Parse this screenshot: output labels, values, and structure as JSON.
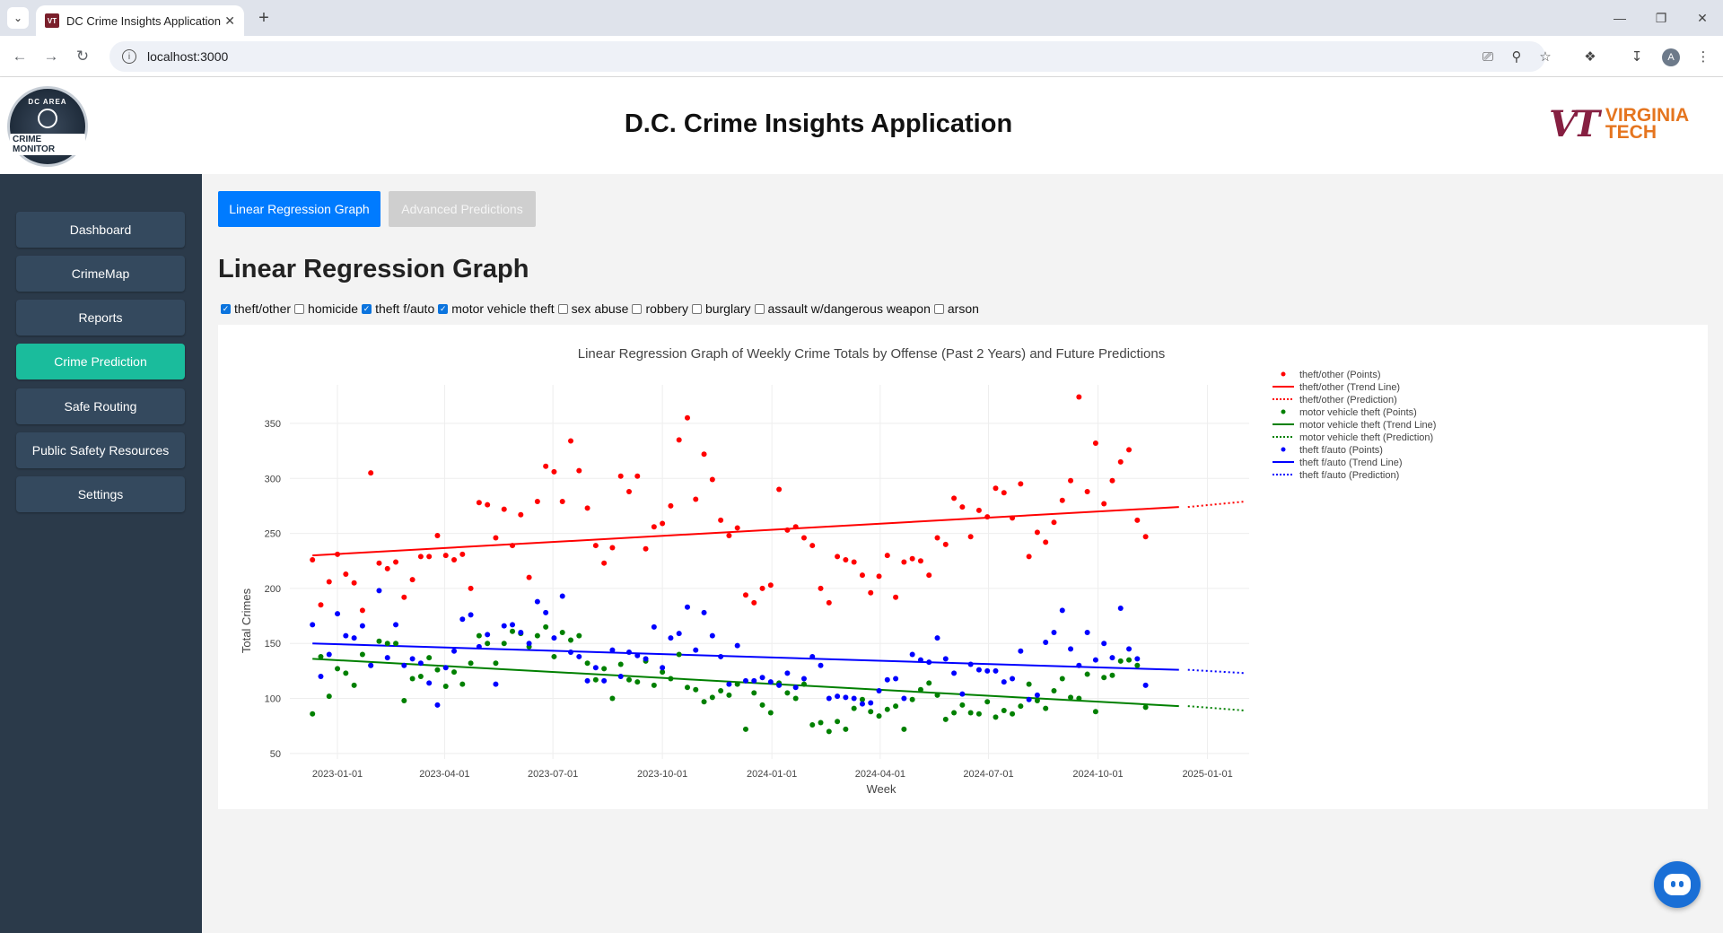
{
  "browser": {
    "tab_title": "DC Crime Insights Application",
    "url": "localhost:3000",
    "favicon_text": "VT",
    "profile_initial": "A"
  },
  "header": {
    "title": "D.C. Crime Insights Application",
    "logo_top": "DC AREA",
    "logo_bottom": "CRIME MONITOR",
    "vt_line1": "VIRGINIA",
    "vt_line2": "TECH"
  },
  "sidebar": {
    "items": [
      {
        "label": "Dashboard",
        "active": false
      },
      {
        "label": "CrimeMap",
        "active": false
      },
      {
        "label": "Reports",
        "active": false
      },
      {
        "label": "Crime Prediction",
        "active": true
      },
      {
        "label": "Safe Routing",
        "active": false
      },
      {
        "label": "Public Safety Resources",
        "active": false
      },
      {
        "label": "Settings",
        "active": false
      }
    ]
  },
  "main": {
    "tabs": [
      {
        "label": "Linear Regression Graph",
        "active": true
      },
      {
        "label": "Advanced Predictions",
        "active": false
      }
    ],
    "section_title": "Linear Regression Graph",
    "filters": [
      {
        "label": "theft/other",
        "checked": true
      },
      {
        "label": "homicide",
        "checked": false
      },
      {
        "label": "theft f/auto",
        "checked": true
      },
      {
        "label": "motor vehicle theft",
        "checked": true
      },
      {
        "label": "sex abuse",
        "checked": false
      },
      {
        "label": "robbery",
        "checked": false
      },
      {
        "label": "burglary",
        "checked": false
      },
      {
        "label": "assault w/dangerous weapon",
        "checked": false
      },
      {
        "label": "arson",
        "checked": false
      }
    ]
  },
  "chart_data": {
    "type": "scatter",
    "title": "Linear Regression Graph of Weekly Crime Totals by Offense (Past 2 Years) and Future Predictions",
    "xlabel": "Week",
    "ylabel": "Total Crimes",
    "x_ticks": [
      "2023-01-01",
      "2023-04-01",
      "2023-07-01",
      "2023-10-01",
      "2024-01-01",
      "2024-04-01",
      "2024-07-01",
      "2024-10-01",
      "2025-01-01"
    ],
    "y_ticks": [
      50,
      100,
      150,
      200,
      250,
      300,
      350
    ],
    "xlim": [
      "2022-11-22",
      "2025-02-05"
    ],
    "ylim": [
      45,
      385
    ],
    "grid": true,
    "legend_position": "right",
    "legend": [
      {
        "label": "theft/other (Points)",
        "color": "#ff0000",
        "style": "points"
      },
      {
        "label": "theft/other (Trend Line)",
        "color": "#ff0000",
        "style": "solid"
      },
      {
        "label": "theft/other (Prediction)",
        "color": "#ff0000",
        "style": "dotted"
      },
      {
        "label": "motor vehicle theft (Points)",
        "color": "#008000",
        "style": "points"
      },
      {
        "label": "motor vehicle theft (Trend Line)",
        "color": "#008000",
        "style": "solid"
      },
      {
        "label": "motor vehicle theft (Prediction)",
        "color": "#008000",
        "style": "dotted"
      },
      {
        "label": "theft f/auto (Points)",
        "color": "#0000ff",
        "style": "points"
      },
      {
        "label": "theft f/auto (Trend Line)",
        "color": "#0000ff",
        "style": "solid"
      },
      {
        "label": "theft f/auto (Prediction)",
        "color": "#0000ff",
        "style": "dotted"
      }
    ],
    "week_start": "2022-12-11",
    "series": [
      {
        "name": "theft/other",
        "color": "#ff0000",
        "points": [
          226,
          185,
          206,
          231,
          213,
          205,
          180,
          305,
          223,
          218,
          224,
          192,
          208,
          229,
          229,
          248,
          230,
          226,
          231,
          200,
          278,
          276,
          246,
          272,
          239,
          267,
          210,
          279,
          311,
          306,
          279,
          334,
          307,
          273,
          239,
          223,
          237,
          302,
          288,
          302,
          236,
          256,
          259,
          275,
          335,
          355,
          281,
          322,
          299,
          262,
          248,
          255,
          194,
          187,
          200,
          203,
          290,
          253,
          256,
          246,
          239,
          200,
          187,
          229,
          226,
          224,
          212,
          196,
          211,
          230,
          192,
          224,
          227,
          225,
          212,
          246,
          240,
          282,
          274,
          247,
          271,
          265,
          291,
          287,
          264,
          295,
          229,
          251,
          242,
          260,
          280,
          298,
          374,
          288,
          332,
          277,
          298,
          315,
          326,
          262,
          247
        ],
        "trend": [
          230,
          274
        ],
        "trend_end": "2024-12-08",
        "prediction": [
          274,
          279
        ],
        "prediction_end": "2025-02-02"
      },
      {
        "name": "motor vehicle theft",
        "color": "#008000",
        "points": [
          86,
          138,
          102,
          127,
          123,
          112,
          140,
          130,
          152,
          150,
          150,
          98,
          118,
          120,
          137,
          126,
          111,
          124,
          113,
          132,
          157,
          150,
          132,
          150,
          161,
          159,
          147,
          157,
          165,
          138,
          160,
          153,
          157,
          132,
          117,
          127,
          100,
          131,
          117,
          115,
          134,
          112,
          124,
          118,
          140,
          110,
          108,
          97,
          101,
          107,
          103,
          113,
          72,
          105,
          94,
          87,
          114,
          105,
          100,
          113,
          76,
          78,
          70,
          79,
          72,
          91,
          99,
          88,
          84,
          90,
          93,
          72,
          99,
          108,
          114,
          103,
          81,
          87,
          94,
          87,
          86,
          97,
          83,
          89,
          86,
          93,
          113,
          98,
          91,
          107,
          118,
          101,
          100,
          122,
          88,
          119,
          121,
          134,
          135,
          130,
          92
        ],
        "trend": [
          136,
          93
        ],
        "trend_end": "2024-12-08",
        "prediction": [
          93,
          89
        ],
        "prediction_end": "2025-02-02"
      },
      {
        "name": "theft f/auto",
        "color": "#0000ff",
        "points": [
          167,
          120,
          140,
          177,
          157,
          155,
          166,
          130,
          198,
          137,
          167,
          130,
          136,
          132,
          114,
          94,
          128,
          143,
          172,
          176,
          147,
          158,
          113,
          166,
          167,
          160,
          150,
          188,
          178,
          155,
          193,
          142,
          138,
          116,
          128,
          116,
          144,
          120,
          142,
          139,
          136,
          165,
          128,
          155,
          159,
          183,
          144,
          178,
          157,
          138,
          113,
          148,
          116,
          116,
          119,
          115,
          112,
          123,
          110,
          118,
          138,
          130,
          100,
          102,
          101,
          100,
          95,
          96,
          107,
          117,
          118,
          100,
          140,
          135,
          133,
          155,
          136,
          123,
          104,
          131,
          126,
          125,
          125,
          115,
          118,
          143,
          99,
          103,
          151,
          160,
          180,
          145,
          130,
          160,
          135,
          150,
          137,
          182,
          145,
          136,
          112
        ],
        "trend": [
          150,
          126
        ],
        "trend_end": "2024-12-08",
        "prediction": [
          126,
          123
        ],
        "prediction_end": "2025-02-02"
      }
    ]
  }
}
